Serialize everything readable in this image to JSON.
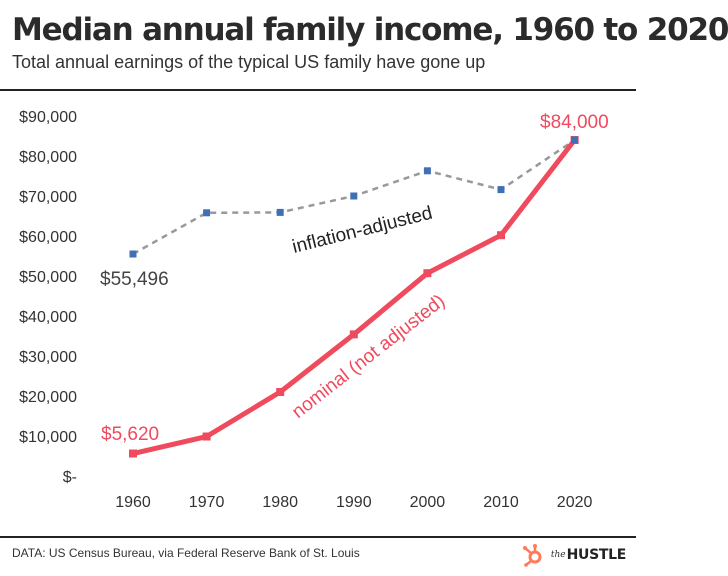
{
  "header": {
    "title": "Median annual family income, 1960 to 2020",
    "subtitle": "Total annual earnings of the typical US family have gone up"
  },
  "footer": {
    "source": "DATA: US Census Bureau, via Federal Reserve Bank of St. Louis",
    "brand_small": "the",
    "brand_big": "HUSTLE",
    "brand_icon": "hubspot-sprocket-icon"
  },
  "colors": {
    "nominal": "#ef4a5e",
    "inflation_adjusted_line": "#999999",
    "inflation_adjusted_marker": "#3f6fb6",
    "brand_accent": "#ff7a59"
  },
  "chart_data": {
    "type": "line",
    "title": "Median annual family income, 1960 to 2020",
    "subtitle": "Total annual earnings of the typical US family have gone up",
    "xlabel": "",
    "ylabel": "",
    "x": [
      1960,
      1970,
      1980,
      1990,
      2000,
      2010,
      2020
    ],
    "x_tick_labels": [
      "1960",
      "1970",
      "1980",
      "1990",
      "2000",
      "2010",
      "2020"
    ],
    "ylim": [
      0,
      90000
    ],
    "y_ticks": [
      0,
      10000,
      20000,
      30000,
      40000,
      50000,
      60000,
      70000,
      80000,
      90000
    ],
    "y_tick_labels": [
      "$-",
      "$10,000",
      "$20,000",
      "$30,000",
      "$40,000",
      "$50,000",
      "$60,000",
      "$70,000",
      "$80,000",
      "$90,000"
    ],
    "grid": false,
    "legend": "none",
    "series": [
      {
        "name": "inflation-adjusted",
        "style": "dashed",
        "values": [
          55496,
          65800,
          65900,
          70000,
          76300,
          71600,
          84000
        ]
      },
      {
        "name": "nominal (not adjusted)",
        "style": "solid",
        "values": [
          5620,
          9870,
          21000,
          35400,
          50700,
          60200,
          84000
        ]
      }
    ],
    "annotations": [
      {
        "text": "$55,496",
        "series": 0,
        "x": 1960
      },
      {
        "text": "$5,620",
        "series": 1,
        "x": 1960
      },
      {
        "text": "$84,000",
        "series": 1,
        "x": 2020
      }
    ]
  }
}
